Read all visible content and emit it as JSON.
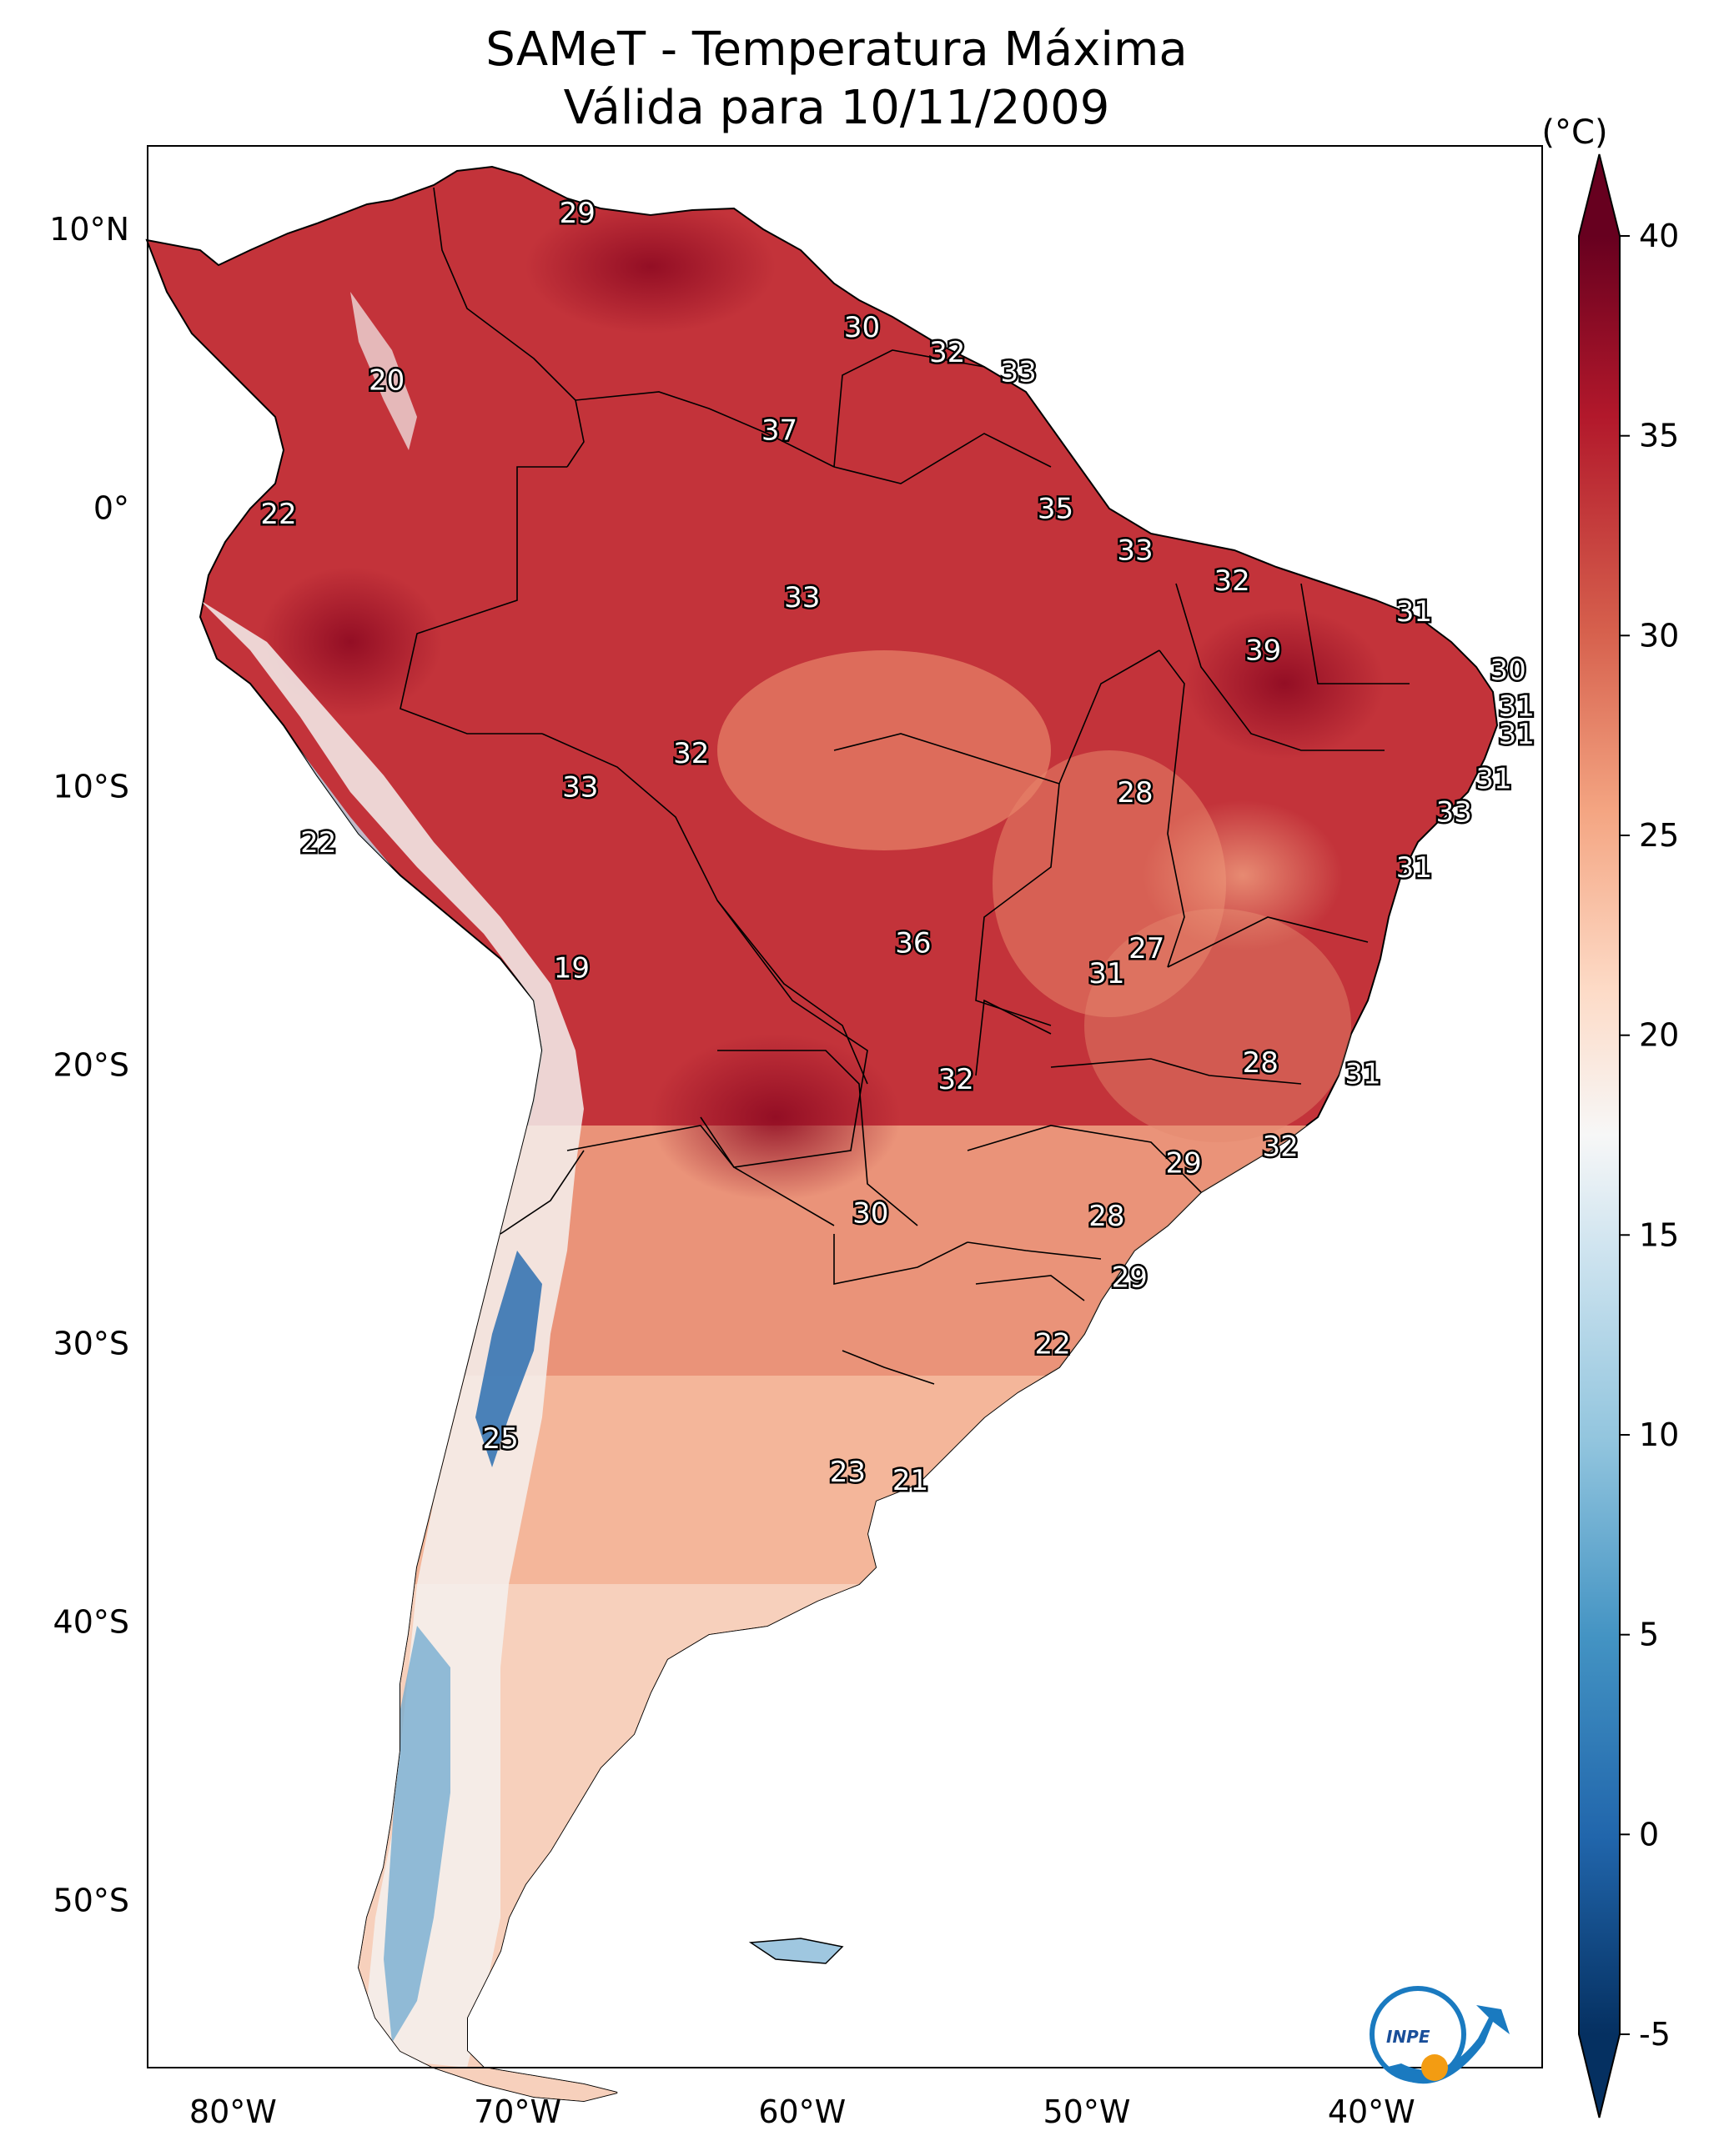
{
  "title": {
    "line1": "SAMeT - Temperatura Máxima",
    "line2": "Válida para 10/11/2009"
  },
  "axes": {
    "lon_labels": [
      "80°W",
      "70°W",
      "60°W",
      "50°W",
      "40°W"
    ],
    "lat_labels": [
      "10°N",
      "0°",
      "10°S",
      "20°S",
      "30°S",
      "40°S",
      "50°S"
    ],
    "lon_range": [
      -83,
      -34
    ],
    "lat_range": [
      13,
      -56
    ]
  },
  "colorbar": {
    "unit": "(°C)",
    "ticks": [
      "40",
      "35",
      "30",
      "25",
      "20",
      "15",
      "10",
      "5",
      "0",
      "-5"
    ],
    "range": [
      -5,
      40
    ],
    "colormap": "RdBu_r",
    "low_color": "#053061",
    "high_color": "#67001f"
  },
  "chart_data": {
    "type": "map",
    "region": "South America",
    "variable": "Temperatura Máxima",
    "date": "10/11/2009",
    "station_values": [
      {
        "value": "29",
        "lon": -67.9,
        "lat": 10.6
      },
      {
        "value": "20",
        "lon": -74.6,
        "lat": 4.6
      },
      {
        "value": "30",
        "lon": -57.9,
        "lat": 6.5
      },
      {
        "value": "32",
        "lon": -54.9,
        "lat": 5.6
      },
      {
        "value": "33",
        "lon": -52.4,
        "lat": 4.9
      },
      {
        "value": "37",
        "lon": -60.8,
        "lat": 2.8
      },
      {
        "value": "22",
        "lon": -78.4,
        "lat": -0.2
      },
      {
        "value": "35",
        "lon": -51.1,
        "lat": 0.0
      },
      {
        "value": "33",
        "lon": -48.3,
        "lat": -1.5
      },
      {
        "value": "32",
        "lon": -44.9,
        "lat": -2.6
      },
      {
        "value": "33",
        "lon": -60.0,
        "lat": -3.2
      },
      {
        "value": "31",
        "lon": -38.5,
        "lat": -3.7
      },
      {
        "value": "39",
        "lon": -43.8,
        "lat": -5.1
      },
      {
        "value": "30",
        "lon": -35.2,
        "lat": -5.8
      },
      {
        "value": "31",
        "lon": -34.9,
        "lat": -7.1
      },
      {
        "value": "31",
        "lon": -34.9,
        "lat": -8.1
      },
      {
        "value": "32",
        "lon": -63.9,
        "lat": -8.8
      },
      {
        "value": "33",
        "lon": -67.8,
        "lat": -10.0
      },
      {
        "value": "28",
        "lon": -48.3,
        "lat": -10.2
      },
      {
        "value": "31",
        "lon": -35.7,
        "lat": -9.7
      },
      {
        "value": "33",
        "lon": -37.1,
        "lat": -10.9
      },
      {
        "value": "22",
        "lon": -77.0,
        "lat": -12.0
      },
      {
        "value": "31",
        "lon": -38.5,
        "lat": -12.9
      },
      {
        "value": "27",
        "lon": -47.9,
        "lat": -15.8
      },
      {
        "value": "36",
        "lon": -56.1,
        "lat": -15.6
      },
      {
        "value": "31",
        "lon": -49.3,
        "lat": -16.7
      },
      {
        "value": "19",
        "lon": -68.1,
        "lat": -16.5
      },
      {
        "value": "28",
        "lon": -43.9,
        "lat": -19.9
      },
      {
        "value": "31",
        "lon": -40.3,
        "lat": -20.3
      },
      {
        "value": "32",
        "lon": -54.6,
        "lat": -20.5
      },
      {
        "value": "32",
        "lon": -43.2,
        "lat": -22.9
      },
      {
        "value": "29",
        "lon": -46.6,
        "lat": -23.5
      },
      {
        "value": "30",
        "lon": -57.6,
        "lat": -25.3
      },
      {
        "value": "28",
        "lon": -49.3,
        "lat": -25.4
      },
      {
        "value": "29",
        "lon": -48.5,
        "lat": -27.6
      },
      {
        "value": "22",
        "lon": -51.2,
        "lat": -30.0
      },
      {
        "value": "25",
        "lon": -70.6,
        "lat": -33.4
      },
      {
        "value": "23",
        "lon": -58.4,
        "lat": -34.6
      },
      {
        "value": "21",
        "lon": -56.2,
        "lat": -34.9
      }
    ]
  },
  "logo": {
    "text": "INPE"
  }
}
